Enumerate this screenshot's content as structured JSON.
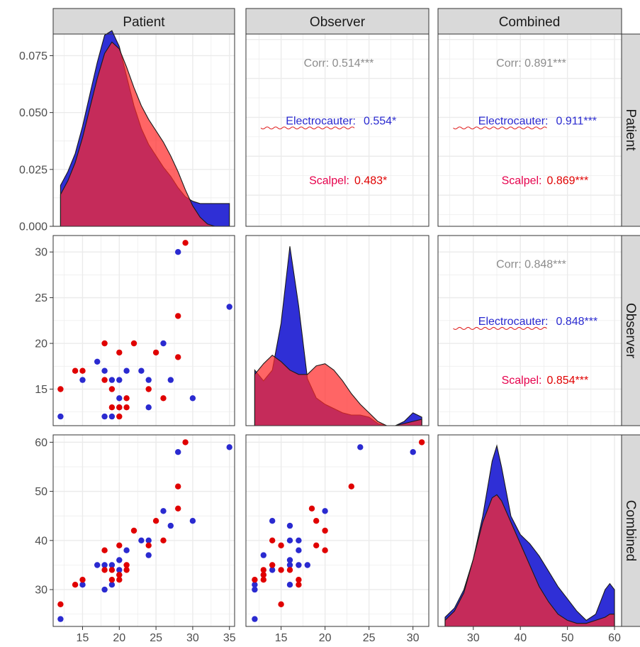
{
  "variables": [
    "Patient",
    "Observer",
    "Combined"
  ],
  "colors": {
    "electrocauter": "#2a2ad0",
    "scalpel": "#e00000",
    "density_electrocauter": "#2f2fd6",
    "density_scalpel": "#ff2a2a",
    "overall_corr": "#8c8c8c",
    "group_label_scalpel": "#e6004c",
    "strip_bg": "#d9d9d9",
    "grid": "#ebebeb"
  },
  "chart_data": {
    "type": "scatter",
    "layout": "pairs-matrix",
    "series": [
      {
        "name": "Electrocauter",
        "color": "#2a2ad0"
      },
      {
        "name": "Scalpel",
        "color": "#e00000"
      }
    ],
    "axes": {
      "Patient": {
        "range": [
          11,
          35.7
        ],
        "ticks": [
          15,
          20,
          25,
          30,
          35
        ]
      },
      "Observer": {
        "range": [
          11,
          31.8
        ],
        "ticks": [
          15,
          20,
          25,
          30
        ],
        "bottom_ticks": [
          15,
          20,
          25,
          30
        ]
      },
      "Combined": {
        "range": [
          22.5,
          61.5
        ],
        "ticks": [
          30,
          40,
          50,
          60
        ]
      },
      "density": {
        "range": [
          0,
          0.0845
        ],
        "ticks": [
          0,
          0.025,
          0.05,
          0.075
        ],
        "tick_labels": [
          "0.000",
          "0.025",
          "0.050",
          "0.075"
        ]
      }
    },
    "correlations": [
      {
        "row": "Patient",
        "col": "Observer",
        "overall": "Corr: 0.514***",
        "electrocauter_label": "Electrocauter:",
        "electrocauter_value": "0.554*",
        "scalpel_label": "Scalpel:",
        "scalpel_value": "0.483*"
      },
      {
        "row": "Patient",
        "col": "Combined",
        "overall": "Corr: 0.891***",
        "electrocauter_label": "Electrocauter:",
        "electrocauter_value": "0.911***",
        "scalpel_label": "Scalpel:",
        "scalpel_value": "0.869***"
      },
      {
        "row": "Observer",
        "col": "Combined",
        "overall": "Corr: 0.848***",
        "electrocauter_label": "Electrocauter:",
        "electrocauter_value": "0.848***",
        "scalpel_label": "Scalpel:",
        "scalpel_value": "0.854***"
      }
    ],
    "points": {
      "Electrocauter": [
        {
          "patient": 12,
          "observer": 12,
          "combined": 24
        },
        {
          "patient": 15,
          "observer": 16,
          "combined": 31
        },
        {
          "patient": 17,
          "observer": 18,
          "combined": 35
        },
        {
          "patient": 18,
          "observer": 17,
          "combined": 35
        },
        {
          "patient": 18,
          "observer": 12,
          "combined": 30
        },
        {
          "patient": 19,
          "observer": 16,
          "combined": 35
        },
        {
          "patient": 19,
          "observer": 12,
          "combined": 31
        },
        {
          "patient": 20,
          "observer": 16,
          "combined": 36
        },
        {
          "patient": 20,
          "observer": 14,
          "combined": 34
        },
        {
          "patient": 20,
          "observer": 13,
          "combined": 33
        },
        {
          "patient": 21,
          "observer": 17,
          "combined": 38
        },
        {
          "patient": 23,
          "observer": 17,
          "combined": 40
        },
        {
          "patient": 24,
          "observer": 16,
          "combined": 40
        },
        {
          "patient": 24,
          "observer": 13,
          "combined": 37
        },
        {
          "patient": 26,
          "observer": 20,
          "combined": 46
        },
        {
          "patient": 27,
          "observer": 16,
          "combined": 43
        },
        {
          "patient": 28,
          "observer": 30,
          "combined": 58
        },
        {
          "patient": 30,
          "observer": 14,
          "combined": 44
        },
        {
          "patient": 35,
          "observer": 24,
          "combined": 59
        }
      ],
      "Scalpel": [
        {
          "patient": 12,
          "observer": 15,
          "combined": 27
        },
        {
          "patient": 14,
          "observer": 17,
          "combined": 31
        },
        {
          "patient": 15,
          "observer": 17,
          "combined": 32
        },
        {
          "patient": 18,
          "observer": 20,
          "combined": 38
        },
        {
          "patient": 18,
          "observer": 16,
          "combined": 34
        },
        {
          "patient": 19,
          "observer": 13,
          "combined": 32
        },
        {
          "patient": 19,
          "observer": 15,
          "combined": 34
        },
        {
          "patient": 20,
          "observer": 19,
          "combined": 39
        },
        {
          "patient": 20,
          "observer": 12,
          "combined": 32
        },
        {
          "patient": 20,
          "observer": 13,
          "combined": 33
        },
        {
          "patient": 21,
          "observer": 14,
          "combined": 35
        },
        {
          "patient": 21,
          "observer": 13,
          "combined": 34
        },
        {
          "patient": 22,
          "observer": 20,
          "combined": 42
        },
        {
          "patient": 24,
          "observer": 15,
          "combined": 39
        },
        {
          "patient": 25,
          "observer": 19,
          "combined": 44
        },
        {
          "patient": 26,
          "observer": 14,
          "combined": 40
        },
        {
          "patient": 28,
          "observer": 23,
          "combined": 51
        },
        {
          "patient": 28,
          "observer": 18.5,
          "combined": 46.5
        },
        {
          "patient": 29,
          "observer": 31,
          "combined": 60
        }
      ]
    },
    "densities": {
      "Patient": {
        "x": [
          12,
          13,
          14,
          15,
          16,
          17,
          18,
          19,
          20,
          21,
          22,
          23,
          24,
          25,
          26,
          27,
          28,
          29,
          30,
          31,
          32,
          33,
          34,
          35
        ],
        "Electrocauter": [
          0.018,
          0.024,
          0.032,
          0.044,
          0.058,
          0.072,
          0.084,
          0.086,
          0.079,
          0.066,
          0.053,
          0.043,
          0.036,
          0.031,
          0.026,
          0.022,
          0.017,
          0.013,
          0.011,
          0.01,
          0.01,
          0.01,
          0.01,
          0.01
        ],
        "Scalpel": [
          0.014,
          0.02,
          0.028,
          0.039,
          0.052,
          0.065,
          0.076,
          0.081,
          0.078,
          0.07,
          0.061,
          0.053,
          0.047,
          0.042,
          0.037,
          0.031,
          0.024,
          0.016,
          0.009,
          0.004,
          0.001,
          0.0,
          0.0,
          0.0
        ]
      },
      "Observer": {
        "x": [
          12,
          13,
          14,
          15,
          16,
          17,
          18,
          19,
          20,
          21,
          22,
          23,
          24,
          25,
          26,
          27,
          28,
          29,
          30,
          31
        ],
        "Electrocauter": [
          0.026,
          0.021,
          0.026,
          0.048,
          0.084,
          0.056,
          0.022,
          0.013,
          0.01,
          0.008,
          0.006,
          0.005,
          0.005,
          0.004,
          0.001,
          0.0,
          0.0,
          0.002,
          0.006,
          0.004
        ],
        "Scalpel": [
          0.024,
          0.029,
          0.033,
          0.03,
          0.026,
          0.024,
          0.024,
          0.028,
          0.029,
          0.026,
          0.021,
          0.015,
          0.01,
          0.006,
          0.002,
          0.0,
          0.0,
          0.001,
          0.002,
          0.003
        ]
      },
      "Combined": {
        "x": [
          24,
          26,
          28,
          30,
          32,
          34,
          35,
          36,
          38,
          40,
          42,
          44,
          46,
          48,
          50,
          52,
          54,
          56,
          58,
          59,
          60
        ],
        "Electrocauter": [
          0.003,
          0.006,
          0.012,
          0.022,
          0.036,
          0.054,
          0.059,
          0.052,
          0.036,
          0.03,
          0.027,
          0.023,
          0.018,
          0.013,
          0.009,
          0.005,
          0.002,
          0.004,
          0.012,
          0.014,
          0.012
        ],
        "Scalpel": [
          0.002,
          0.005,
          0.011,
          0.022,
          0.034,
          0.042,
          0.043,
          0.041,
          0.034,
          0.027,
          0.02,
          0.013,
          0.008,
          0.004,
          0.002,
          0.001,
          0.001,
          0.002,
          0.003,
          0.004,
          0.004
        ]
      }
    }
  }
}
